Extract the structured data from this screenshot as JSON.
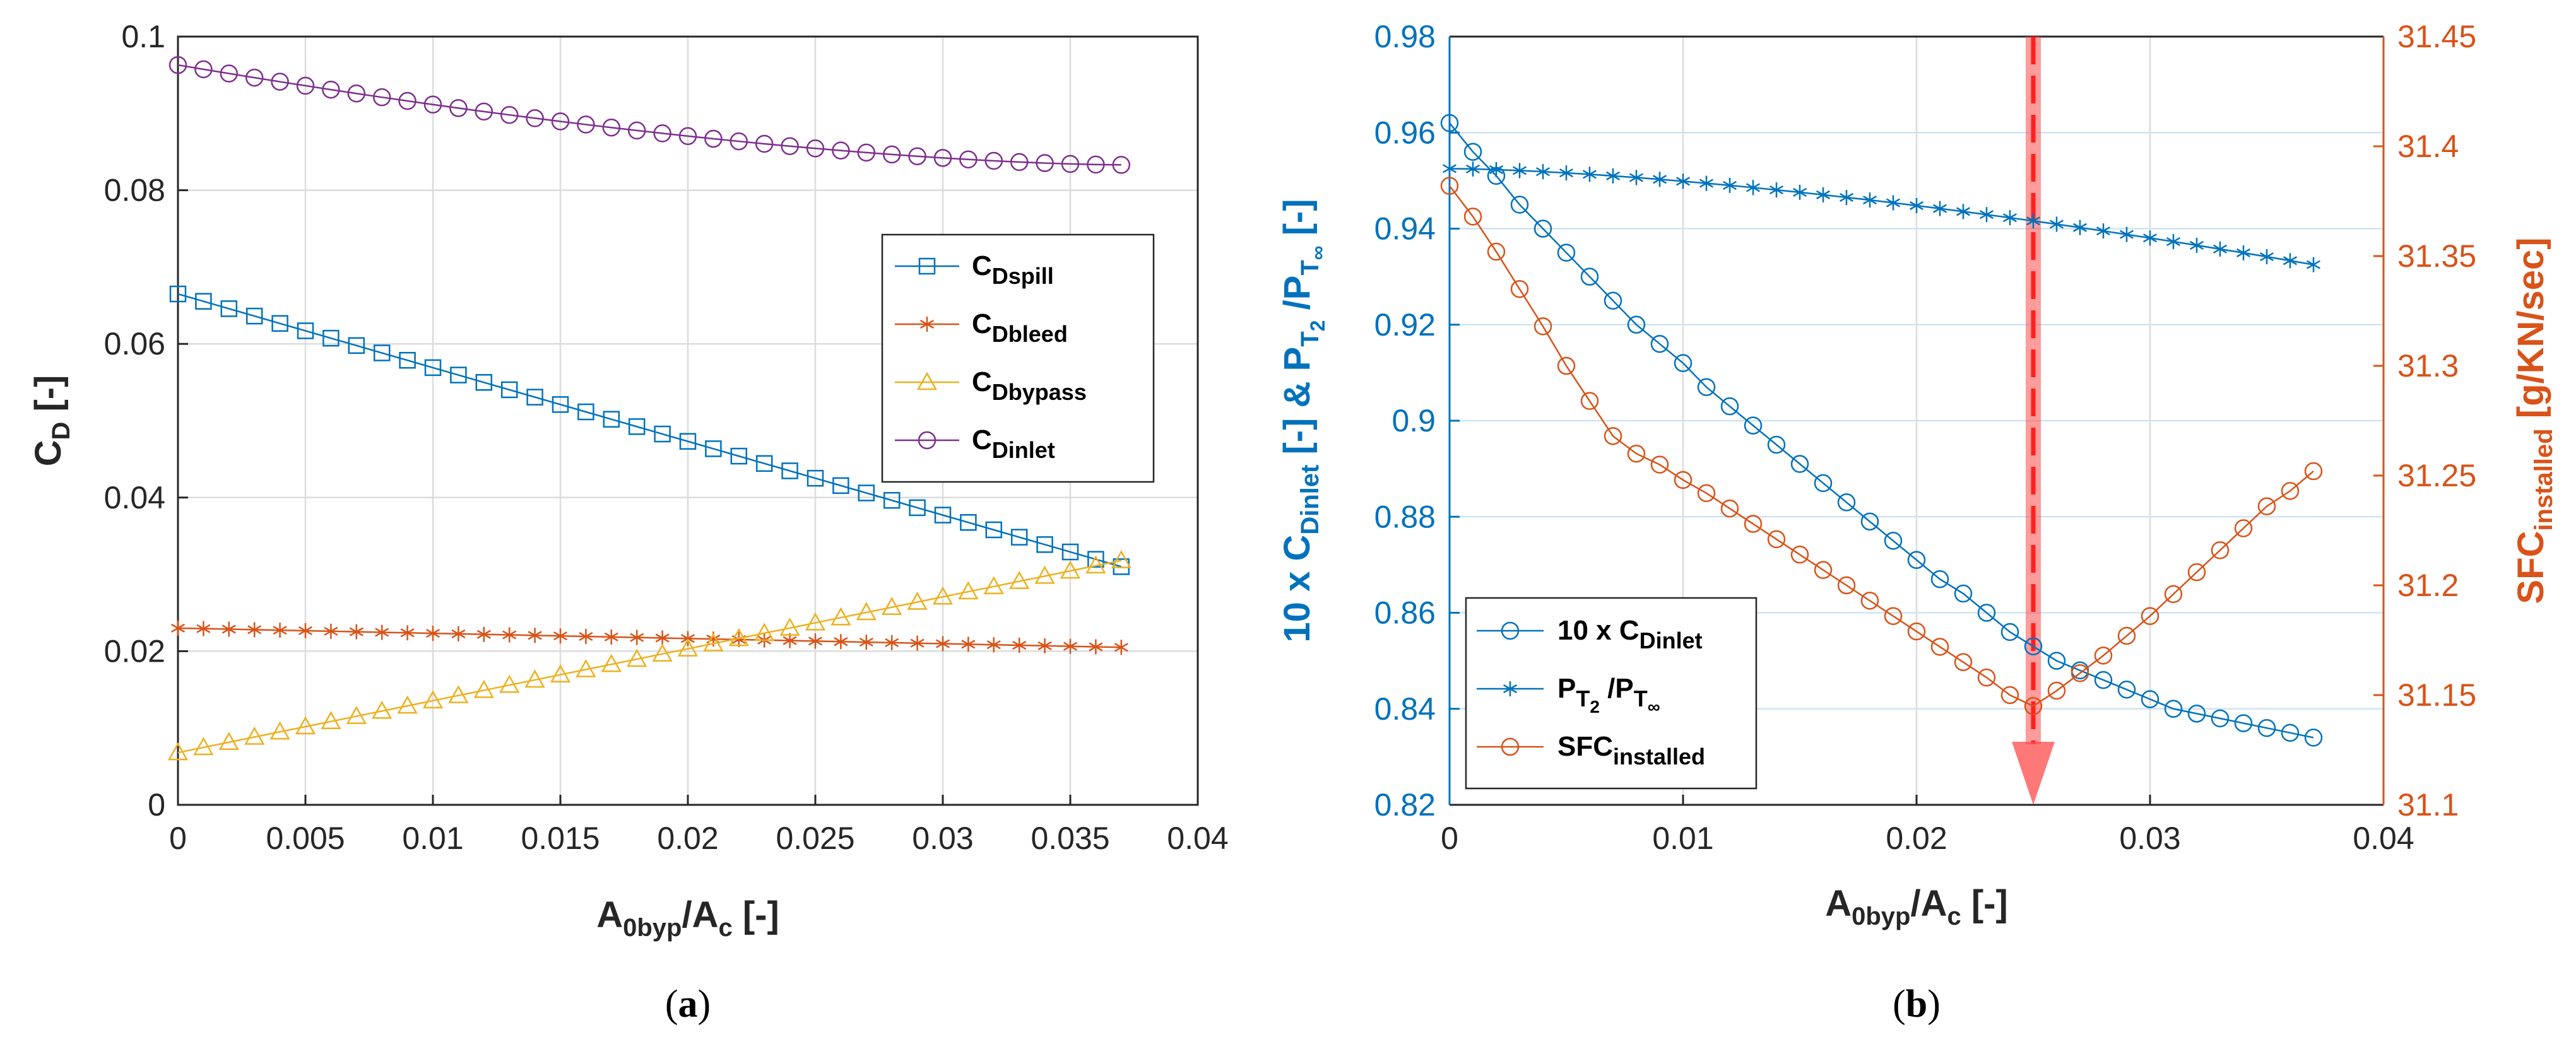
{
  "chart_data": [
    {
      "type": "line",
      "panel_label": "a",
      "xlabel": "A0byp/Ac [-]",
      "xlabel_parts": {
        "main": "A",
        "sub1": "0byp",
        "mid": "/A",
        "sub2": "c",
        "tail": " [-]"
      },
      "ylabel": "CD [-]",
      "ylabel_parts": {
        "main": "C",
        "sub": "D",
        "tail": " [-]"
      },
      "xlim": [
        0,
        0.04
      ],
      "ylim": [
        0,
        0.1
      ],
      "xticks": [
        "0",
        "0.005",
        "0.01",
        "0.015",
        "0.02",
        "0.025",
        "0.03",
        "0.035",
        "0.04"
      ],
      "yticks": [
        "0",
        "0.02",
        "0.04",
        "0.06",
        "0.08",
        "0.1"
      ],
      "grid": true,
      "legend_position": "right",
      "series": [
        {
          "name": "CDspill",
          "name_main": "C",
          "name_sub": "Dspill",
          "marker": "square",
          "color": "#0072BD",
          "x_start": 0,
          "x_step": 0.001,
          "count": 38,
          "y_start": 0.0665,
          "y_end": 0.031,
          "curve": "linear"
        },
        {
          "name": "CDbleed",
          "name_main": "C",
          "name_sub": "Dbleed",
          "marker": "asterisk",
          "color": "#D95319",
          "x_start": 0,
          "x_step": 0.001,
          "count": 38,
          "y_start": 0.023,
          "y_end": 0.0205,
          "curve": "linear"
        },
        {
          "name": "CDbypass",
          "name_main": "C",
          "name_sub": "Dbypass",
          "marker": "triangle",
          "color": "#EDB120",
          "x_start": 0,
          "x_step": 0.001,
          "count": 38,
          "y_start": 0.0068,
          "y_end": 0.0318,
          "curve": "linear"
        },
        {
          "name": "CDinlet",
          "name_main": "C",
          "name_sub": "Dinlet",
          "marker": "circle",
          "color": "#7E2F8E",
          "x_start": 0,
          "x_step": 0.001,
          "count": 38,
          "y_start": 0.0963,
          "y_end": 0.0833,
          "curve": "concave"
        }
      ]
    },
    {
      "type": "line",
      "panel_label": "b",
      "xlabel": "A0byp/Ac [-]",
      "xlabel_parts": {
        "main": "A",
        "sub1": "0byp",
        "mid": "/A",
        "sub2": "c",
        "tail": " [-]"
      },
      "ylabel_left": "10 x CDinlet [-] & PT2/PT∞ [-]",
      "ylabel_left_parts": {
        "a": "10 x C",
        "a_sub": "Dinlet",
        "b": " [-]   &   P",
        "b_sub": "T",
        "b_subsub": "2",
        "c": " /P",
        "c_sub": "T",
        "c_subsub": "∞",
        "d": " [-]"
      },
      "ylabel_right": "SFCinstalled [g/KN/sec]",
      "ylabel_right_parts": {
        "main": "SFC",
        "sub": "installed",
        "tail": " [g/KN/sec]"
      },
      "xlim": [
        0,
        0.04
      ],
      "ylim_left": [
        0.82,
        0.98
      ],
      "ylim_right": [
        31.1,
        31.45
      ],
      "xticks": [
        "0",
        "0.01",
        "0.02",
        "0.03",
        "0.04"
      ],
      "yticks_left": [
        "0.82",
        "0.84",
        "0.86",
        "0.88",
        "0.9",
        "0.92",
        "0.94",
        "0.96",
        "0.98"
      ],
      "yticks_right": [
        "31.1",
        "31.15",
        "31.2",
        "31.25",
        "31.3",
        "31.35",
        "31.4",
        "31.45"
      ],
      "grid": true,
      "legend_position": "bottom-left",
      "left_axis_color": "#0072BD",
      "right_axis_color": "#D95319",
      "arrow_x": 0.025,
      "arrow_color": "#FF4B4B",
      "series": [
        {
          "name": "10 x CDinlet",
          "legend_main": "10 x C",
          "legend_sub": "Dinlet",
          "marker": "circle",
          "color": "#0072BD",
          "axis": "left",
          "x": [
            0,
            0.001,
            0.002,
            0.003,
            0.004,
            0.005,
            0.006,
            0.007,
            0.008,
            0.009,
            0.01,
            0.011,
            0.012,
            0.013,
            0.014,
            0.015,
            0.016,
            0.017,
            0.018,
            0.019,
            0.02,
            0.021,
            0.022,
            0.023,
            0.024,
            0.025,
            0.026,
            0.027,
            0.028,
            0.029,
            0.03,
            0.031,
            0.032,
            0.033,
            0.034,
            0.035,
            0.036,
            0.037
          ],
          "y": [
            0.962,
            0.956,
            0.951,
            0.945,
            0.94,
            0.935,
            0.93,
            0.925,
            0.92,
            0.916,
            0.912,
            0.907,
            0.903,
            0.899,
            0.895,
            0.891,
            0.887,
            0.883,
            0.879,
            0.875,
            0.871,
            0.867,
            0.864,
            0.86,
            0.856,
            0.853,
            0.85,
            0.848,
            0.846,
            0.844,
            0.842,
            0.84,
            0.839,
            0.838,
            0.837,
            0.836,
            0.835,
            0.834
          ]
        },
        {
          "name": "PT2/PT∞",
          "legend_main": "P",
          "legend_sub": "T",
          "legend_subsub": "2",
          "legend_mid": " /P",
          "legend_sub2": "T",
          "legend_subsub2": "∞",
          "marker": "asterisk",
          "color": "#0072BD",
          "axis": "left",
          "x_start": 0,
          "x_step": 0.001,
          "count": 38,
          "y_start": 0.9525,
          "y_end": 0.9325,
          "curve": "concave"
        },
        {
          "name": "SFCinstalled",
          "legend_main": "SFC",
          "legend_sub": "installed",
          "marker": "circle",
          "color": "#D95319",
          "axis": "right",
          "x": [
            0,
            0.001,
            0.002,
            0.003,
            0.004,
            0.005,
            0.006,
            0.007,
            0.008,
            0.009,
            0.01,
            0.011,
            0.012,
            0.013,
            0.014,
            0.015,
            0.016,
            0.017,
            0.018,
            0.019,
            0.02,
            0.021,
            0.022,
            0.023,
            0.024,
            0.025,
            0.026,
            0.027,
            0.028,
            0.029,
            0.03,
            0.031,
            0.032,
            0.033,
            0.034,
            0.035,
            0.036,
            0.037
          ],
          "y": [
            31.382,
            31.368,
            31.352,
            31.335,
            31.318,
            31.3,
            31.284,
            31.268,
            31.26,
            31.255,
            31.248,
            31.242,
            31.235,
            31.228,
            31.221,
            31.214,
            31.207,
            31.2,
            31.193,
            31.186,
            31.179,
            31.172,
            31.165,
            31.158,
            31.15,
            31.145,
            31.152,
            31.16,
            31.168,
            31.177,
            31.186,
            31.196,
            31.206,
            31.216,
            31.226,
            31.236,
            31.243,
            31.252
          ]
        }
      ]
    }
  ]
}
